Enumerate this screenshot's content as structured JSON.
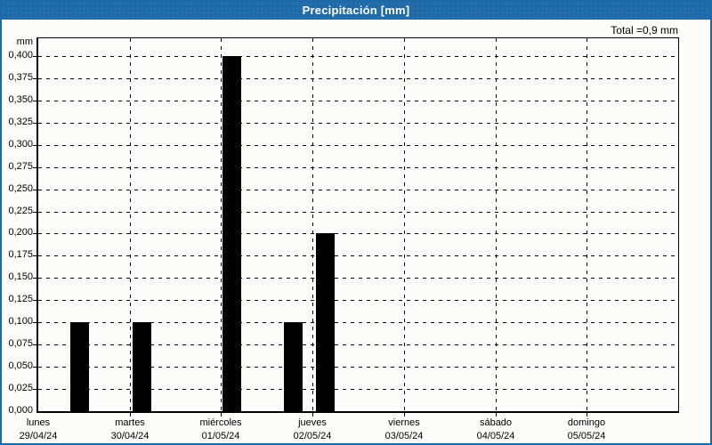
{
  "titlebar": {
    "title": "Precipitación [mm]"
  },
  "summary": {
    "total_label": "Total =0,9 mm"
  },
  "colors": {
    "titlebar_bg": "#1e69a7",
    "window_border": "#1e69a7",
    "bar_color": "#000000",
    "grid_color": "#000000",
    "background": "#fcfdfb",
    "title_text": "#ffffff"
  },
  "chart_data": {
    "type": "bar",
    "title": "Precipitación [mm]",
    "ylabel": "mm",
    "total": 0.9,
    "total_label": "Total =0,9 mm",
    "ylim": [
      0,
      0.42
    ],
    "ytick_step": 0.025,
    "ytick_labels": [
      "0,000",
      "0,025",
      "0,050",
      "0,075",
      "0,100",
      "0,125",
      "0,150",
      "0,175",
      "0,200",
      "0,225",
      "0,250",
      "0,275",
      "0,300",
      "0,325",
      "0,350",
      "0,375",
      "0,400"
    ],
    "grid": "dashed",
    "legend": false,
    "x_days": [
      {
        "name": "lunes",
        "date": "29/04/24"
      },
      {
        "name": "martes",
        "date": "30/04/24"
      },
      {
        "name": "miércoles",
        "date": "01/05/24"
      },
      {
        "name": "jueves",
        "date": "02/05/24"
      },
      {
        "name": "viernes",
        "date": "03/05/24"
      },
      {
        "name": "sábado",
        "date": "04/05/24"
      },
      {
        "name": "domingo",
        "date": "05/05/24"
      }
    ],
    "bar_width_days": 0.2,
    "bars": [
      {
        "t": 0.35,
        "value": 0.1
      },
      {
        "t": 1.03,
        "value": 0.1
      },
      {
        "t": 2.02,
        "value": 0.4
      },
      {
        "t": 2.69,
        "value": 0.1
      },
      {
        "t": 3.04,
        "value": 0.2
      }
    ]
  }
}
